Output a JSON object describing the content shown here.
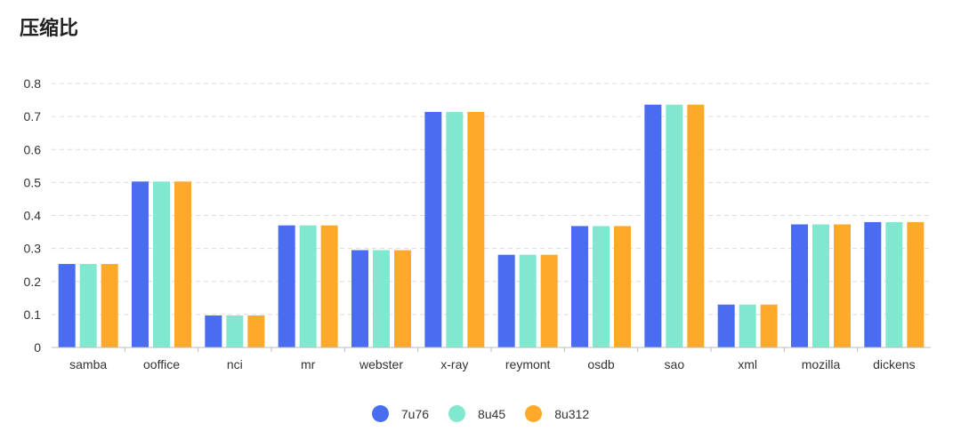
{
  "title": "压缩比",
  "colors": {
    "7u76": "#4a6cf0",
    "8u45": "#7fe8cf",
    "8u312": "#ffa92b"
  },
  "chart_data": {
    "type": "bar",
    "title": "压缩比",
    "xlabel": "",
    "ylabel": "",
    "ylim": [
      0,
      0.8
    ],
    "yticks": [
      "0",
      "0.1",
      "0.2",
      "0.3",
      "0.4",
      "0.5",
      "0.6",
      "0.7",
      "0.8"
    ],
    "grid": true,
    "legend_position": "bottom",
    "categories": [
      "samba",
      "ooffice",
      "nci",
      "mr",
      "webster",
      "x-ray",
      "reymont",
      "osdb",
      "sao",
      "xml",
      "mozilla",
      "dickens"
    ],
    "series": [
      {
        "name": "7u76",
        "color": "#4a6cf0",
        "values": [
          0.253,
          0.503,
          0.097,
          0.37,
          0.295,
          0.714,
          0.281,
          0.368,
          0.736,
          0.13,
          0.373,
          0.38
        ]
      },
      {
        "name": "8u45",
        "color": "#7fe8cf",
        "values": [
          0.253,
          0.503,
          0.097,
          0.37,
          0.295,
          0.714,
          0.281,
          0.368,
          0.736,
          0.13,
          0.373,
          0.38
        ]
      },
      {
        "name": "8u312",
        "color": "#ffa92b",
        "values": [
          0.253,
          0.503,
          0.097,
          0.37,
          0.295,
          0.714,
          0.281,
          0.368,
          0.736,
          0.13,
          0.373,
          0.38
        ]
      }
    ]
  }
}
